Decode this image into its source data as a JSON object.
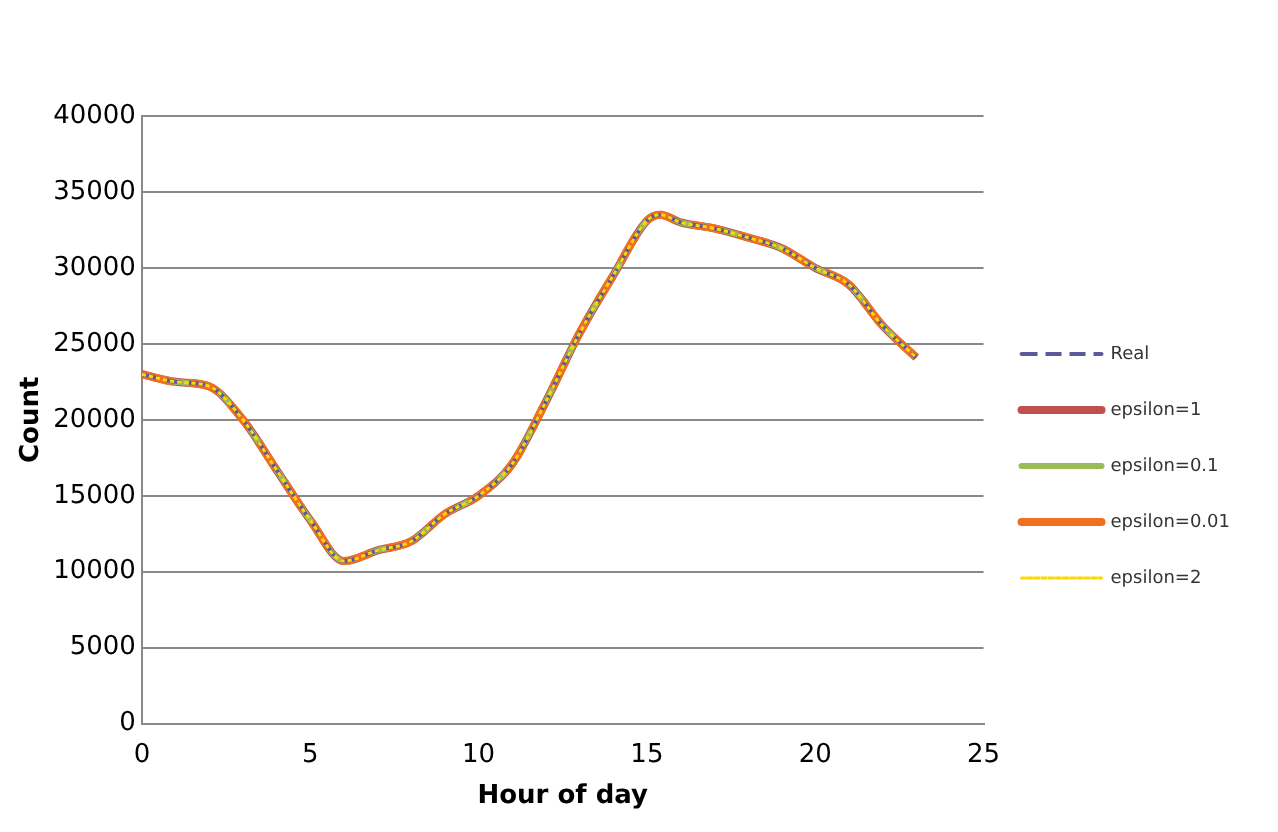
{
  "chart_data": {
    "type": "line",
    "xlabel": "Hour of day",
    "ylabel": "Count",
    "x": [
      0,
      1,
      2,
      3,
      4,
      5,
      6,
      7,
      8,
      9,
      10,
      11,
      12,
      13,
      14,
      15,
      15.4,
      16,
      17,
      18,
      19,
      20,
      21,
      22,
      23
    ],
    "series": [
      {
        "name": "Real",
        "color": "#5b5b9c",
        "line_style": "dashed",
        "values": [
          23000,
          22500,
          22200,
          20000,
          16700,
          13400,
          10700,
          11400,
          12000,
          13800,
          15000,
          17100,
          21200,
          25700,
          29500,
          33100,
          33500,
          33000,
          32600,
          32000,
          31300,
          30000,
          28900,
          26200,
          24100
        ]
      },
      {
        "name": "epsilon=1",
        "color": "#c0504d",
        "line_style": "solid",
        "values": [
          23000,
          22500,
          22200,
          20000,
          16700,
          13400,
          10700,
          11400,
          12000,
          13800,
          15000,
          17100,
          21200,
          25700,
          29500,
          33100,
          33500,
          33000,
          32600,
          32000,
          31300,
          30000,
          28900,
          26200,
          24100
        ]
      },
      {
        "name": "epsilon=0.1",
        "color": "#9bbb59",
        "line_style": "solid",
        "values": [
          23000,
          22500,
          22200,
          20000,
          16700,
          13400,
          10700,
          11400,
          12000,
          13800,
          15000,
          17100,
          21200,
          25700,
          29500,
          33100,
          33500,
          33000,
          32600,
          32000,
          31300,
          30000,
          28900,
          26200,
          24100
        ]
      },
      {
        "name": "epsilon=0.01",
        "color": "#f07020",
        "line_style": "dashed",
        "values": [
          23000,
          22500,
          22200,
          20000,
          16700,
          13400,
          10700,
          11400,
          12000,
          13800,
          15000,
          17100,
          21200,
          25700,
          29500,
          33100,
          33500,
          33000,
          32600,
          32000,
          31300,
          30000,
          28900,
          26200,
          24100
        ]
      },
      {
        "name": "epsilon=2",
        "color": "#ffd700",
        "line_style": "dotted",
        "values": [
          23000,
          22500,
          22200,
          20000,
          16700,
          13400,
          10700,
          11400,
          12000,
          13800,
          15000,
          17100,
          21200,
          25700,
          29500,
          33100,
          33500,
          33000,
          32600,
          32000,
          31300,
          30000,
          28900,
          26200,
          24100
        ]
      }
    ],
    "xlim": [
      0,
      25
    ],
    "xticks": [
      0,
      5,
      10,
      15,
      20,
      25
    ],
    "ylim": [
      0,
      40000
    ],
    "yticks": [
      0,
      5000,
      10000,
      15000,
      20000,
      25000,
      30000,
      35000,
      40000
    ],
    "grid": "y",
    "legend": "right",
    "marker": "none"
  }
}
